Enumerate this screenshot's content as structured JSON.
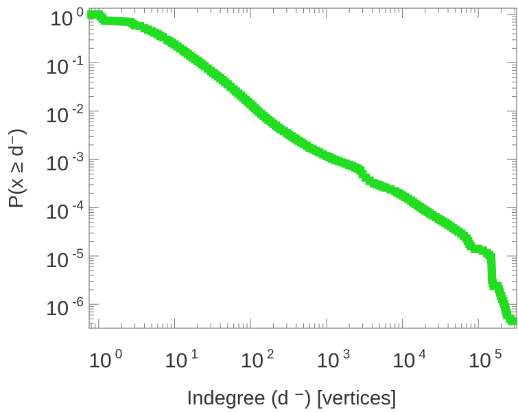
{
  "chart_data": {
    "type": "scatter",
    "title": "",
    "xlabel": "Indegree (d  ⁻) [vertices]",
    "ylabel": "P(x ≥ d⁻)",
    "xscale": "log",
    "yscale": "log",
    "xlim": [
      0.75,
      320000
    ],
    "ylim": [
      3.2e-07,
      1.35
    ],
    "grid": false,
    "legend": "none",
    "marker": "square",
    "color": "#22dd22",
    "x_ticks": [
      {
        "base": "10",
        "exp": "0"
      },
      {
        "base": "10",
        "exp": "1"
      },
      {
        "base": "10",
        "exp": "2"
      },
      {
        "base": "10",
        "exp": "3"
      },
      {
        "base": "10",
        "exp": "4"
      },
      {
        "base": "10",
        "exp": "5"
      }
    ],
    "y_ticks": [
      {
        "base": "10",
        "exp": "0"
      },
      {
        "base": "10",
        "exp": "-1"
      },
      {
        "base": "10",
        "exp": "-2"
      },
      {
        "base": "10",
        "exp": "-3"
      },
      {
        "base": "10",
        "exp": "-4"
      },
      {
        "base": "10",
        "exp": "-5"
      },
      {
        "base": "10",
        "exp": "-6"
      }
    ],
    "series": [
      {
        "points": [
          [
            0.8,
            1.0
          ],
          [
            1.0,
            1.0
          ],
          [
            1.2,
            0.75
          ],
          [
            1.6,
            0.73
          ],
          [
            2.0,
            0.72
          ],
          [
            2.6,
            0.7
          ],
          [
            3.0,
            0.6
          ],
          [
            3.5,
            0.58
          ],
          [
            4,
            0.52
          ],
          [
            5,
            0.45
          ],
          [
            6,
            0.39
          ],
          [
            7,
            0.34
          ],
          [
            8,
            0.3
          ],
          [
            10,
            0.24
          ],
          [
            13,
            0.18
          ],
          [
            16,
            0.14
          ],
          [
            20,
            0.11
          ],
          [
            25,
            0.085
          ],
          [
            30,
            0.068
          ],
          [
            40,
            0.048
          ],
          [
            50,
            0.036
          ],
          [
            60,
            0.028
          ],
          [
            80,
            0.019
          ],
          [
            100,
            0.014
          ],
          [
            130,
            0.0095
          ],
          [
            160,
            0.0072
          ],
          [
            200,
            0.0055
          ],
          [
            250,
            0.0042
          ],
          [
            300,
            0.0035
          ],
          [
            400,
            0.0026
          ],
          [
            500,
            0.0021
          ],
          [
            600,
            0.00175
          ],
          [
            800,
            0.0014
          ],
          [
            1000,
            0.00118
          ],
          [
            1300,
            0.00098
          ],
          [
            1600,
            0.00087
          ],
          [
            2000,
            0.00077
          ],
          [
            2400,
            0.00068
          ],
          [
            2600,
            0.00064
          ],
          [
            2800,
            0.00059
          ],
          [
            3000,
            0.0005
          ],
          [
            3300,
            0.00042
          ],
          [
            3700,
            0.00036
          ],
          [
            4200,
            0.00032
          ],
          [
            5000,
            0.00029
          ],
          [
            6000,
            0.00026
          ],
          [
            7000,
            0.00024
          ],
          [
            8000,
            0.00022
          ],
          [
            10000,
            0.00018
          ],
          [
            13000,
            0.00014
          ],
          [
            16000,
            0.00011
          ],
          [
            20000,
            8.8e-05
          ],
          [
            25000,
            7e-05
          ],
          [
            30000,
            5.9e-05
          ],
          [
            40000,
            4.5e-05
          ],
          [
            50000,
            3.5e-05
          ],
          [
            60000,
            2.9e-05
          ],
          [
            70000,
            2.3e-05
          ],
          [
            80000,
            1.6e-05
          ],
          [
            90000,
            1.4e-05
          ],
          [
            100000,
            1.4e-05
          ],
          [
            115000,
            1.3e-05
          ],
          [
            130000,
            1.15e-05
          ],
          [
            140000,
            1.05e-05
          ],
          [
            148000,
            9.5e-06
          ],
          [
            150000,
            6e-06
          ],
          [
            152000,
            3.2e-06
          ],
          [
            160000,
            2.4e-06
          ],
          [
            180000,
            2.4e-06
          ],
          [
            200000,
            1.5e-06
          ],
          [
            220000,
            1e-06
          ],
          [
            240000,
            6e-07
          ],
          [
            260000,
            5e-07
          ],
          [
            280000,
            4.5e-07
          ]
        ]
      }
    ]
  }
}
